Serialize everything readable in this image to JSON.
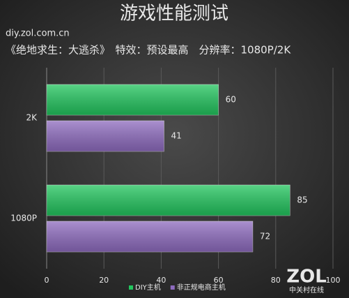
{
  "chart_data": {
    "type": "bar",
    "orientation": "horizontal",
    "title": "游戏性能测试",
    "subtitle": "《绝地求生：大逃杀》　特效：预设最高　分辨率：1080P/2K",
    "source": "diy.zol.com.cn",
    "logo": "ZOL",
    "logo_subtitle": "中关村在线",
    "categories": [
      "2K",
      "1080P"
    ],
    "series": [
      {
        "name": "DIY主机",
        "color": "#22c55e",
        "values": [
          60,
          85
        ]
      },
      {
        "name": "非正规电商主机",
        "color": "#8e6bbf",
        "values": [
          41,
          72
        ]
      }
    ],
    "xlim": [
      0,
      100
    ],
    "xticks": [
      0,
      20,
      40,
      60,
      80,
      100
    ],
    "grid": true,
    "legend": "bottom"
  }
}
